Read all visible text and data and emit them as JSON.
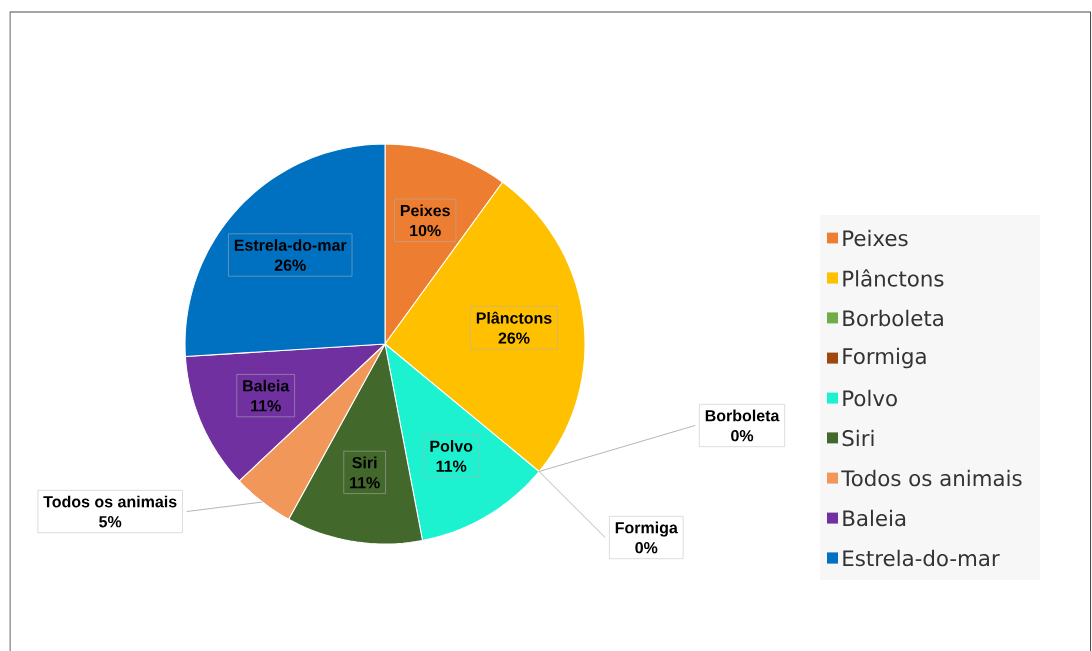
{
  "chart_data": {
    "type": "pie",
    "categories": [
      "Peixes",
      "Plânctons",
      "Borboleta",
      "Formiga",
      "Polvo",
      "Siri",
      "Todos os animais",
      "Baleia",
      "Estrela-do-mar"
    ],
    "values": [
      10,
      26,
      0,
      0,
      11,
      11,
      5,
      11,
      26
    ],
    "value_labels": [
      "10%",
      "26%",
      "0%",
      "0%",
      "11%",
      "11%",
      "5%",
      "11%",
      "26%"
    ],
    "colors": [
      "#ed7d31",
      "#ffc000",
      "#70ad47",
      "#9e480e",
      "#1df2d0",
      "#43682b",
      "#f1975a",
      "#7030a0",
      "#0070c0"
    ],
    "data_labels": true,
    "legend": "right"
  }
}
